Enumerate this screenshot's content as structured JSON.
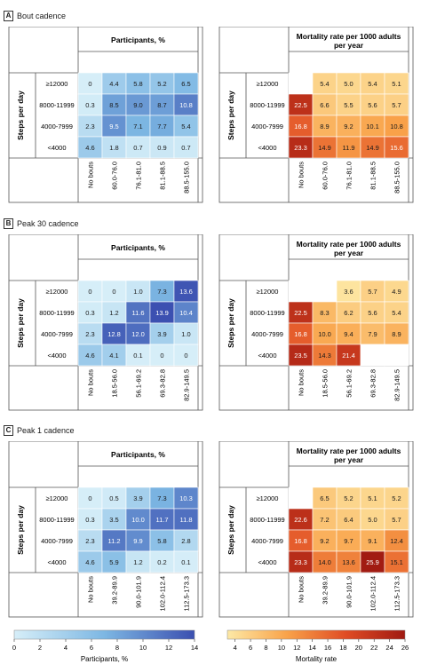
{
  "row_labels": [
    "≥12000",
    "8000-11999",
    "4000-7999",
    "<4000"
  ],
  "ylabel": "Steps per day",
  "chart_data": [
    {
      "type": "heatmap",
      "panel": "A",
      "panel_title": "Bout cadence",
      "metric": "participants",
      "title": "Participants, %",
      "xlabel": "Bout cadence",
      "columns": [
        "No bouts",
        "60.0-76.0",
        "76.1-81.0",
        "81.1-88.5",
        "88.5-155.0"
      ],
      "rows": [
        "≥12000",
        "8000-11999",
        "4000-7999",
        "<4000"
      ],
      "values": [
        [
          0,
          4.4,
          5.8,
          5.2,
          6.5
        ],
        [
          0.3,
          8.5,
          9.0,
          8.7,
          10.8
        ],
        [
          2.3,
          9.5,
          7.1,
          7.7,
          5.4
        ],
        [
          4.6,
          1.8,
          0.7,
          0.9,
          0.7
        ]
      ],
      "labels": [
        [
          "0",
          "4.4",
          "5.8",
          "5.2",
          "6.5"
        ],
        [
          "0.3",
          "8.5",
          "9.0",
          "8.7",
          "10.8"
        ],
        [
          "2.3",
          "9.5",
          "7.1",
          "7.7",
          "5.4"
        ],
        [
          "4.6",
          "1.8",
          "0.7",
          "0.9",
          "0.7"
        ]
      ]
    },
    {
      "type": "heatmap",
      "panel": "A",
      "metric": "mortality",
      "title": "Mortality rate per 1000 adults per year",
      "xlabel": "Bout cadence",
      "columns": [
        "No bouts",
        "60.0-76.0",
        "76.1-81.0",
        "81.1-88.5",
        "88.5-155.0"
      ],
      "rows": [
        "≥12000",
        "8000-11999",
        "4000-7999",
        "<4000"
      ],
      "values": [
        [
          null,
          5.4,
          5.0,
          5.4,
          5.1
        ],
        [
          22.5,
          6.6,
          5.5,
          5.6,
          5.7
        ],
        [
          16.8,
          8.9,
          9.2,
          10.1,
          10.8
        ],
        [
          23.3,
          14.9,
          11.9,
          14.9,
          15.6
        ]
      ],
      "labels": [
        [
          "",
          "5.4",
          "5.0",
          "5.4",
          "5.1"
        ],
        [
          "22.5",
          "6.6",
          "5.5",
          "5.6",
          "5.7"
        ],
        [
          "16.8",
          "8.9",
          "9.2",
          "10.1",
          "10.8"
        ],
        [
          "23.3",
          "14.9",
          "11.9",
          "14.9",
          "15.6"
        ]
      ]
    },
    {
      "type": "heatmap",
      "panel": "B",
      "panel_title": "Peak 30 cadence",
      "metric": "participants",
      "title": "Participants, %",
      "xlabel": "Peak 30 cadence",
      "columns": [
        "No bouts",
        "18.5-56.0",
        "56.1-69.2",
        "69.3-82.8",
        "82.9-149.5"
      ],
      "rows": [
        "≥12000",
        "8000-11999",
        "4000-7999",
        "<4000"
      ],
      "values": [
        [
          0,
          0,
          1.0,
          7.3,
          13.6
        ],
        [
          0.3,
          1.2,
          11.6,
          13.9,
          10.4
        ],
        [
          2.3,
          12.8,
          12.0,
          3.9,
          1.0
        ],
        [
          4.6,
          4.1,
          0.1,
          0,
          0
        ]
      ],
      "labels": [
        [
          "0",
          "0",
          "1.0",
          "7.3",
          "13.6"
        ],
        [
          "0.3",
          "1.2",
          "11.6",
          "13.9",
          "10.4"
        ],
        [
          "2.3",
          "12.8",
          "12.0",
          "3.9",
          "1.0"
        ],
        [
          "4.6",
          "4.1",
          "0.1",
          "0",
          "0"
        ]
      ]
    },
    {
      "type": "heatmap",
      "panel": "B",
      "metric": "mortality",
      "title": "Mortality rate per 1000 adults per year",
      "xlabel": "Peak 30 cadence",
      "columns": [
        "No bouts",
        "18.5-56.0",
        "56.1-69.2",
        "69.3-82.8",
        "82.9-149.5"
      ],
      "rows": [
        "≥12000",
        "8000-11999",
        "4000-7999",
        "<4000"
      ],
      "values": [
        [
          null,
          null,
          3.6,
          5.7,
          4.9
        ],
        [
          22.5,
          8.3,
          6.2,
          5.6,
          5.4
        ],
        [
          16.8,
          10.0,
          9.4,
          7.9,
          8.9
        ],
        [
          23.5,
          14.3,
          21.4,
          null,
          null
        ]
      ],
      "labels": [
        [
          "",
          "",
          "3.6",
          "5.7",
          "4.9"
        ],
        [
          "22.5",
          "8.3",
          "6.2",
          "5.6",
          "5.4"
        ],
        [
          "16.8",
          "10.0",
          "9.4",
          "7.9",
          "8.9"
        ],
        [
          "23.5",
          "14.3",
          "21.4",
          "",
          ""
        ]
      ]
    },
    {
      "type": "heatmap",
      "panel": "C",
      "panel_title": "Peak 1 cadence",
      "metric": "participants",
      "title": "Participants, %",
      "xlabel": "Peak 1 cadence",
      "columns": [
        "No bouts",
        "39.2-89.9",
        "90.0-101.9",
        "102.0-112.4",
        "112.5-173.3"
      ],
      "rows": [
        "≥12000",
        "8000-11999",
        "4000-7999",
        "<4000"
      ],
      "values": [
        [
          0,
          0.5,
          3.9,
          7.3,
          10.3
        ],
        [
          0.3,
          3.5,
          10.0,
          11.7,
          11.8
        ],
        [
          2.3,
          11.2,
          9.9,
          5.8,
          2.8
        ],
        [
          4.6,
          5.9,
          1.2,
          0.2,
          0.1
        ]
      ],
      "labels": [
        [
          "0",
          "0.5",
          "3.9",
          "7.3",
          "10.3"
        ],
        [
          "0.3",
          "3.5",
          "10.0",
          "11.7",
          "11.8"
        ],
        [
          "2.3",
          "11.2",
          "9.9",
          "5.8",
          "2.8"
        ],
        [
          "4.6",
          "5.9",
          "1.2",
          "0.2",
          "0.1"
        ]
      ]
    },
    {
      "type": "heatmap",
      "panel": "C",
      "metric": "mortality",
      "title": "Mortality rate per 1000 adults per year",
      "xlabel": "Peak 1 cadence",
      "columns": [
        "No bouts",
        "39.2-89.9",
        "90.0-101.9",
        "102.0-112.4",
        "112.5-173.3"
      ],
      "rows": [
        "≥12000",
        "8000-11999",
        "4000-7999",
        "<4000"
      ],
      "values": [
        [
          null,
          6.5,
          5.2,
          5.1,
          5.2
        ],
        [
          22.6,
          7.2,
          6.4,
          5.0,
          5.7
        ],
        [
          16.8,
          9.2,
          9.7,
          9.1,
          12.4
        ],
        [
          23.3,
          14.0,
          13.6,
          25.9,
          15.1
        ]
      ],
      "labels": [
        [
          "",
          "6.5",
          "5.2",
          "5.1",
          "5.2"
        ],
        [
          "22.6",
          "7.2",
          "6.4",
          "5.0",
          "5.7"
        ],
        [
          "16.8",
          "9.2",
          "9.7",
          "9.1",
          "12.4"
        ],
        [
          "23.3",
          "14.0",
          "13.6",
          "25.9",
          "15.1"
        ]
      ]
    }
  ],
  "legends": {
    "participants": {
      "label": "Participants, %",
      "ticks": [
        "0",
        "2",
        "4",
        "6",
        "8",
        "10",
        "12",
        "14"
      ],
      "min": 0,
      "max": 14,
      "colors": [
        "#d6eef8",
        "#7db7e3",
        "#3b4fb0"
      ]
    },
    "mortality": {
      "label": "Mortality rate",
      "ticks": [
        "4",
        "6",
        "8",
        "10",
        "12",
        "14",
        "16",
        "18",
        "20",
        "22",
        "24",
        "26"
      ],
      "min": 3,
      "max": 26,
      "colors": [
        "#fde9a6",
        "#f9a34a",
        "#e04c24",
        "#a01a12"
      ]
    }
  }
}
